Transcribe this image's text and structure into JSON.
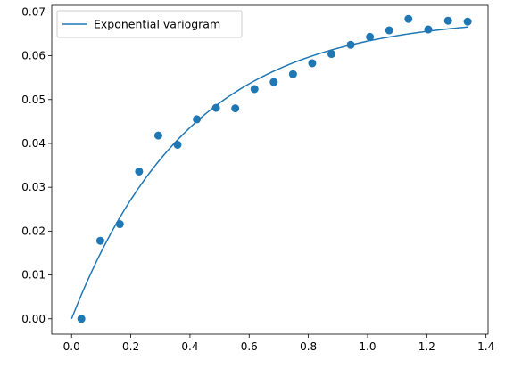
{
  "chart_data": {
    "type": "scatter",
    "title": "",
    "xlabel": "",
    "ylabel": "",
    "xlim": [
      -0.067,
      1.407
    ],
    "ylim": [
      -0.0035,
      0.0715
    ],
    "xticks": [
      0.0,
      0.2,
      0.4,
      0.6,
      0.8,
      1.0,
      1.2,
      1.4
    ],
    "xtick_labels": [
      "0.0",
      "0.2",
      "0.4",
      "0.6",
      "0.8",
      "1.0",
      "1.2",
      "1.4"
    ],
    "yticks": [
      0.0,
      0.01,
      0.02,
      0.03,
      0.04,
      0.05,
      0.06,
      0.07
    ],
    "ytick_labels": [
      "0.00",
      "0.01",
      "0.02",
      "0.03",
      "0.04",
      "0.05",
      "0.06",
      "0.07"
    ],
    "grid": false,
    "legend_position": "top-left",
    "series": [
      {
        "kind": "line",
        "name": "Exponential variogram",
        "color": "#1f77b4",
        "model": {
          "nugget": 0.0,
          "sill": 0.069,
          "range": 0.4,
          "x_max": 1.34
        }
      },
      {
        "kind": "scatter",
        "color": "#1f77b4",
        "x": [
          0.033,
          0.097,
          0.163,
          0.228,
          0.293,
          0.358,
          0.423,
          0.488,
          0.553,
          0.618,
          0.683,
          0.748,
          0.813,
          0.878,
          0.943,
          1.008,
          1.073,
          1.138,
          1.205,
          1.272,
          1.338
        ],
        "y": [
          0.0,
          0.0178,
          0.0216,
          0.0336,
          0.0418,
          0.0397,
          0.0455,
          0.0481,
          0.048,
          0.0524,
          0.054,
          0.0558,
          0.0583,
          0.0604,
          0.0625,
          0.0643,
          0.0658,
          0.0684,
          0.066,
          0.068,
          0.0678
        ]
      }
    ]
  }
}
